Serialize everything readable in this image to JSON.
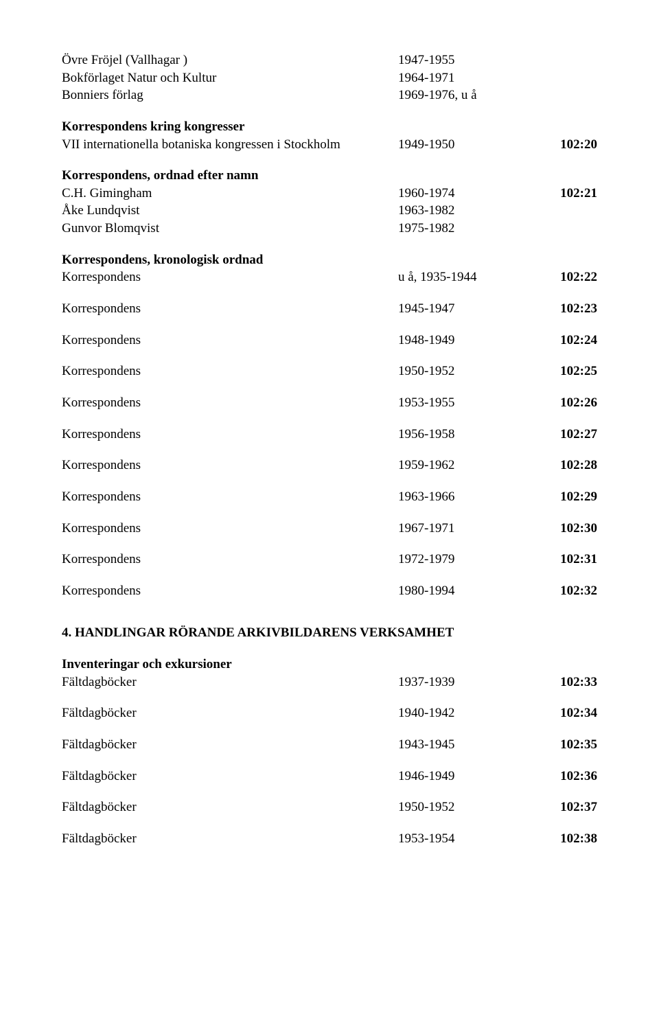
{
  "top_block": [
    {
      "left": "Övre Fröjel (Vallhagar )",
      "mid": "1947-1955",
      "right": ""
    },
    {
      "left": "Bokförlaget Natur  och Kultur",
      "mid": "1964-1971",
      "right": ""
    },
    {
      "left": "Bonniers förlag",
      "mid": "1969-1976, u å",
      "right": ""
    }
  ],
  "section1_header": "Korrespondens kring kongresser",
  "section1_rows": [
    {
      "left": "VII internationella botaniska kongressen i Stockholm",
      "mid": "1949-1950",
      "right": "102:20"
    }
  ],
  "section2_header": "Korrespondens, ordnad efter namn",
  "section2_rows": [
    {
      "left": "C.H. Gimingham",
      "mid": "1960-1974",
      "right": "102:21"
    },
    {
      "left": "Åke Lundqvist",
      "mid": "1963-1982",
      "right": ""
    },
    {
      "left": "Gunvor Blomqvist",
      "mid": "1975-1982",
      "right": ""
    }
  ],
  "section3_header": "Korrespondens, kronologisk ordnad",
  "section3_first": {
    "left": "Korrespondens",
    "mid": "u å, 1935-1944",
    "right": "102:22"
  },
  "section3_rows": [
    {
      "left": "Korrespondens",
      "mid": "1945-1947",
      "right": "102:23"
    },
    {
      "left": "Korrespondens",
      "mid": "1948-1949",
      "right": "102:24"
    },
    {
      "left": "Korrespondens",
      "mid": "1950-1952",
      "right": "102:25"
    },
    {
      "left": "Korrespondens",
      "mid": "1953-1955",
      "right": "102:26"
    },
    {
      "left": "Korrespondens",
      "mid": "1956-1958",
      "right": "102:27"
    },
    {
      "left": "Korrespondens",
      "mid": "1959-1962",
      "right": "102:28"
    },
    {
      "left": "Korrespondens",
      "mid": "1963-1966",
      "right": "102:29"
    },
    {
      "left": "Korrespondens",
      "mid": "1967-1971",
      "right": "102:30"
    },
    {
      "left": "Korrespondens",
      "mid": "1972-1979",
      "right": "102:31"
    },
    {
      "left": "Korrespondens",
      "mid": "1980-1994",
      "right": "102:32"
    }
  ],
  "big_header": "4. HANDLINGAR RÖRANDE ARKIVBILDARENS VERKSAMHET",
  "section4_header": "Inventeringar och exkursioner",
  "section4_first": {
    "left": "Fältdagböcker",
    "mid": "1937-1939",
    "right": "102:33"
  },
  "section4_rows": [
    {
      "left": "Fältdagböcker",
      "mid": "1940-1942",
      "right": "102:34"
    },
    {
      "left": "Fältdagböcker",
      "mid": "1943-1945",
      "right": "102:35"
    },
    {
      "left": "Fältdagböcker",
      "mid": "1946-1949",
      "right": "102:36"
    },
    {
      "left": "Fältdagböcker",
      "mid": "1950-1952",
      "right": "102:37"
    },
    {
      "left": "Fältdagböcker",
      "mid": "1953-1954",
      "right": "102:38"
    }
  ]
}
